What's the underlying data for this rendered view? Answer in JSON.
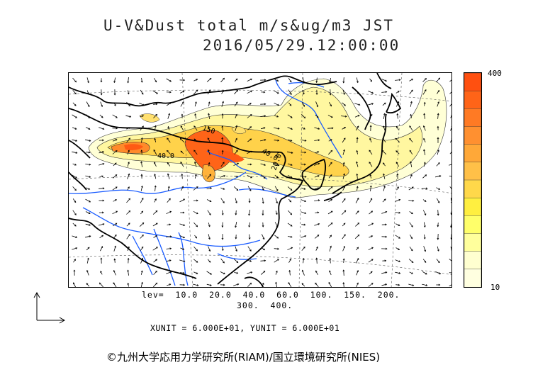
{
  "title": {
    "line1": "U-V&Dust total m/s&ug/m3 JST",
    "line2": "2016/05/29.12:00:00"
  },
  "colorbar": {
    "max_label": "400",
    "min_label": "10",
    "colors": [
      "#ffffe0",
      "#ffffd0",
      "#ffff9c",
      "#ffff6a",
      "#ffef40",
      "#ffd84a",
      "#ffc048",
      "#ffa838",
      "#ff9030",
      "#ff7a24",
      "#ff6418",
      "#ff5010"
    ]
  },
  "contours": {
    "label_150": "150",
    "label_40a": "40.0",
    "label_40b": "40.0",
    "label_20": "20.0"
  },
  "levels": {
    "line1": "lev=  10.0  20.0  40.0  60.0  100.  150.  200.",
    "line2": "300.  400."
  },
  "units": "XUNIT = 6.000E+01, YUNIT = 6.000E+01",
  "credit": "©九州大学応用力学研究所(RIAM)/国立環境研究所(NIES)",
  "palette": {
    "coast": "#000000",
    "river": "#1a5cff",
    "arrow": "#000000"
  }
}
